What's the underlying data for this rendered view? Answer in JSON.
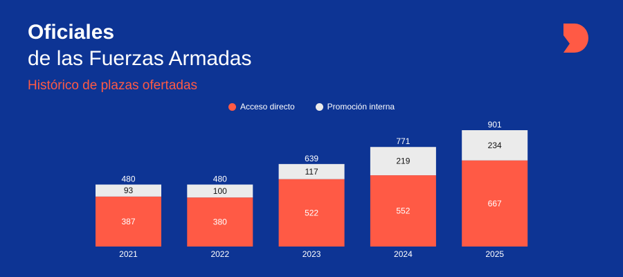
{
  "header": {
    "title": "Oficiales",
    "subtitle": "de las Fuerzas Armadas",
    "tagline": "Histórico de plazas ofertadas"
  },
  "colors": {
    "background": "#0d3494",
    "acceso": "#ff5a45",
    "promocion": "#ebebeb",
    "accent": "#ff5a45",
    "text": "#ffffff"
  },
  "logo": {
    "icon": "d-logo-icon"
  },
  "chart_data": {
    "type": "bar",
    "stacked": true,
    "categories": [
      "2021",
      "2022",
      "2023",
      "2024",
      "2025"
    ],
    "series": [
      {
        "name": "Acceso directo",
        "values": [
          387,
          380,
          522,
          552,
          667
        ],
        "color": "#ff5a45"
      },
      {
        "name": "Promoción interna",
        "values": [
          93,
          100,
          117,
          219,
          234
        ],
        "color": "#ebebeb"
      }
    ],
    "totals": [
      480,
      480,
      639,
      771,
      901
    ],
    "legend": "top-center",
    "grid": false,
    "ylim": [
      0,
      901
    ]
  }
}
